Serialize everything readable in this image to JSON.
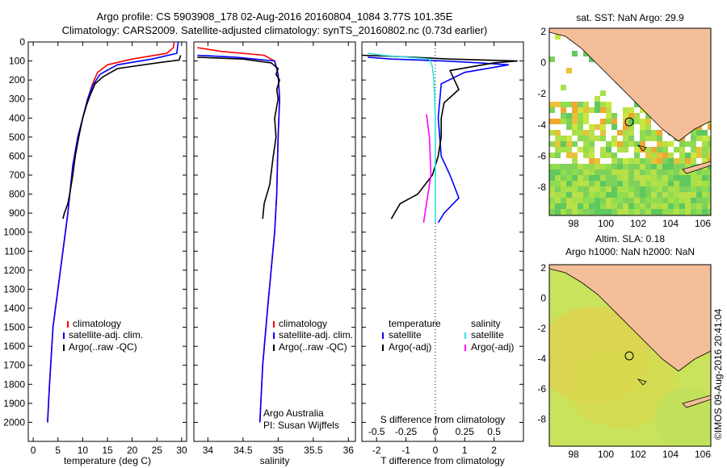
{
  "title_line1": "Argo profile: CS 5903908_178 02-Aug-2016 20160804_1084 3.77S 101.35E",
  "title_line2": "Climatology: CARS2009. Satellite-adjusted climatology: synTS_20160802.nc (0.73d earlier)",
  "credit": "Argo Australia",
  "pi": "PI: Susan Wijffels",
  "stamp": "©IMOS 09-Aug-2016 20:41:04",
  "colors": {
    "climatology": "#ff0000",
    "satellite": "#0000ff",
    "argo": "#000000",
    "sal_sat": "#33e0e0",
    "sal_argo": "#ff00ff",
    "land": "#f4be98"
  },
  "chart_data": [
    {
      "type": "line",
      "id": "temperature",
      "xlabel": "temperature (deg C)",
      "ylabel": "",
      "xlim": [
        -1,
        31
      ],
      "ylim": [
        2100,
        0
      ],
      "xticks": [
        0,
        5,
        10,
        15,
        20,
        25,
        30
      ],
      "yticks": [
        0,
        100,
        200,
        300,
        400,
        500,
        600,
        700,
        800,
        900,
        1000,
        1100,
        1200,
        1300,
        1400,
        1500,
        1600,
        1700,
        1800,
        1900,
        2000
      ],
      "legend": [
        "climatology",
        "satellite-adj. clim.",
        "Argo(..raw -QC)"
      ],
      "series": [
        {
          "name": "climatology",
          "color": "#ff0000",
          "points": [
            [
              28.5,
              0
            ],
            [
              28.3,
              30
            ],
            [
              27,
              60
            ],
            [
              20,
              90
            ],
            [
              15,
              120
            ],
            [
              13,
              160
            ],
            [
              12,
              220
            ],
            [
              11,
              300
            ],
            [
              10,
              400
            ],
            [
              9,
              500
            ],
            [
              8,
              650
            ],
            [
              7,
              900
            ],
            [
              5.5,
              1200
            ],
            [
              4,
              1500
            ],
            [
              3.3,
              1800
            ],
            [
              2.9,
              2000
            ]
          ]
        },
        {
          "name": "satellite-adj. clim.",
          "color": "#0000ff",
          "points": [
            [
              29.3,
              0
            ],
            [
              29,
              60
            ],
            [
              24,
              90
            ],
            [
              17,
              120
            ],
            [
              13.5,
              170
            ],
            [
              12,
              230
            ],
            [
              11,
              300
            ],
            [
              10,
              400
            ],
            [
              9,
              500
            ],
            [
              8,
              650
            ],
            [
              7,
              900
            ],
            [
              5.5,
              1200
            ],
            [
              4,
              1500
            ],
            [
              3.3,
              1800
            ],
            [
              2.9,
              2000
            ]
          ]
        },
        {
          "name": "Argo(..raw -QC)",
          "color": "#000000",
          "points": [
            [
              29.8,
              70
            ],
            [
              29.5,
              95
            ],
            [
              25,
              110
            ],
            [
              17,
              140
            ],
            [
              14,
              185
            ],
            [
              12.5,
              220
            ],
            [
              11.5,
              280
            ],
            [
              10.8,
              330
            ],
            [
              10,
              400
            ],
            [
              9.2,
              500
            ],
            [
              8.5,
              600
            ],
            [
              8,
              700
            ],
            [
              7.5,
              780
            ],
            [
              7,
              850
            ],
            [
              6.3,
              900
            ],
            [
              6,
              930
            ]
          ]
        }
      ]
    },
    {
      "type": "line",
      "id": "salinity",
      "xlabel": "salinity",
      "ylabel": "",
      "xlim": [
        33.8,
        36.1
      ],
      "ylim": [
        2100,
        0
      ],
      "xticks": [
        34,
        34.5,
        35,
        35.5,
        36
      ],
      "legend": [
        "climatology",
        "satellite-adj. clim.",
        "Argo(..raw -QC)"
      ],
      "series": [
        {
          "name": "climatology",
          "color": "#ff0000",
          "points": [
            [
              33.85,
              30
            ],
            [
              34.2,
              50
            ],
            [
              34.8,
              70
            ],
            [
              34.95,
              100
            ],
            [
              35.0,
              170
            ],
            [
              35.02,
              300
            ],
            [
              35.0,
              500
            ],
            [
              34.98,
              800
            ],
            [
              34.95,
              1000
            ],
            [
              34.85,
              1400
            ],
            [
              34.78,
              1700
            ],
            [
              34.74,
              2000
            ]
          ]
        },
        {
          "name": "satellite-adj. clim.",
          "color": "#0000ff",
          "points": [
            [
              33.85,
              70
            ],
            [
              34.4,
              80
            ],
            [
              34.95,
              100
            ],
            [
              35.0,
              170
            ],
            [
              35.02,
              300
            ],
            [
              35.0,
              500
            ],
            [
              34.98,
              800
            ],
            [
              34.95,
              1000
            ],
            [
              34.85,
              1400
            ],
            [
              34.78,
              1700
            ],
            [
              34.74,
              2000
            ]
          ]
        },
        {
          "name": "Argo(..raw -QC)",
          "color": "#000000",
          "points": [
            [
              33.85,
              80
            ],
            [
              34.5,
              90
            ],
            [
              34.9,
              110
            ],
            [
              35.0,
              140
            ],
            [
              34.97,
              170
            ],
            [
              35.02,
              200
            ],
            [
              34.98,
              250
            ],
            [
              35.0,
              300
            ],
            [
              34.95,
              400
            ],
            [
              34.97,
              500
            ],
            [
              34.93,
              600
            ],
            [
              34.88,
              750
            ],
            [
              34.8,
              850
            ],
            [
              34.78,
              930
            ]
          ]
        }
      ]
    },
    {
      "type": "line",
      "id": "difference",
      "xlabel": "T difference from climatology",
      "xlabel_top": "S difference from climatology",
      "xlim": [
        -2.5,
        3
      ],
      "ylim": [
        2100,
        0
      ],
      "xticks": [
        -2,
        -1,
        0,
        1,
        2
      ],
      "xticks_top": [
        "-0.5",
        "-0.25",
        "0",
        "0.25",
        "0.5"
      ],
      "legend_temperature": {
        "title": "temperature",
        "items": [
          "satellite",
          "Argo(-adj)"
        ]
      },
      "legend_salinity": {
        "title": "salinity",
        "items": [
          "satellite",
          "Argo(-adj)"
        ]
      },
      "series": [
        {
          "name": "temperature satellite",
          "color": "#0000ff",
          "points": [
            [
              -2.3,
              80
            ],
            [
              -1.5,
              90
            ],
            [
              0.3,
              100
            ],
            [
              1.5,
              110
            ],
            [
              2.5,
              120
            ],
            [
              1,
              160
            ],
            [
              0.2,
              220
            ],
            [
              0.1,
              400
            ],
            [
              0.2,
              600
            ],
            [
              0.5,
              700
            ],
            [
              0.8,
              820
            ],
            [
              0.3,
              900
            ],
            [
              0.1,
              950
            ]
          ]
        },
        {
          "name": "temperature Argo(-adj)",
          "color": "#000000",
          "points": [
            [
              -2.5,
              70
            ],
            [
              -1.5,
              75
            ],
            [
              0.5,
              90
            ],
            [
              2.8,
              100
            ],
            [
              2,
              110
            ],
            [
              0.5,
              150
            ],
            [
              0.8,
              250
            ],
            [
              0.3,
              320
            ],
            [
              0.2,
              400
            ],
            [
              0.2,
              500
            ],
            [
              0.1,
              600
            ],
            [
              -0.1,
              700
            ],
            [
              -0.6,
              800
            ],
            [
              -1.2,
              850
            ],
            [
              -1.5,
              930
            ]
          ]
        },
        {
          "name": "salinity satellite",
          "color": "#33e0e0",
          "points": [
            [
              -2.3,
              60
            ],
            [
              -1.8,
              70
            ],
            [
              -0.2,
              90
            ],
            [
              -0.1,
              130
            ],
            [
              -0.05,
              200
            ],
            [
              0,
              400
            ],
            [
              0,
              700
            ],
            [
              0,
              950
            ]
          ]
        },
        {
          "name": "salinity Argo(-adj)",
          "color": "#ff00ff",
          "points": [
            [
              -0.3,
              380
            ],
            [
              -0.2,
              500
            ],
            [
              -0.15,
              700
            ],
            [
              -0.3,
              850
            ],
            [
              -0.4,
              950
            ]
          ]
        }
      ]
    },
    {
      "type": "heatmap",
      "id": "sst-map",
      "title": "sat. SST: NaN Argo: 29.9",
      "xlim": [
        96.5,
        106.5
      ],
      "ylim": [
        -9.8,
        2.2
      ],
      "xticks": [
        98,
        100,
        102,
        104,
        106
      ],
      "yticks": [
        2,
        0,
        -2,
        -4,
        -6,
        -8
      ],
      "marker": {
        "lon": 101.35,
        "lat": -3.77
      }
    },
    {
      "type": "heatmap",
      "id": "sla-map",
      "title": "Altim. SLA: 0.18",
      "subtitle": "Argo h1000: NaN h2000: NaN",
      "xlim": [
        96.5,
        106.5
      ],
      "ylim": [
        -9.8,
        2.2
      ],
      "xticks": [
        98,
        100,
        102,
        104,
        106
      ],
      "yticks": [
        2,
        0,
        -2,
        -4,
        -6,
        -8
      ],
      "marker": {
        "lon": 101.35,
        "lat": -3.77
      }
    }
  ]
}
